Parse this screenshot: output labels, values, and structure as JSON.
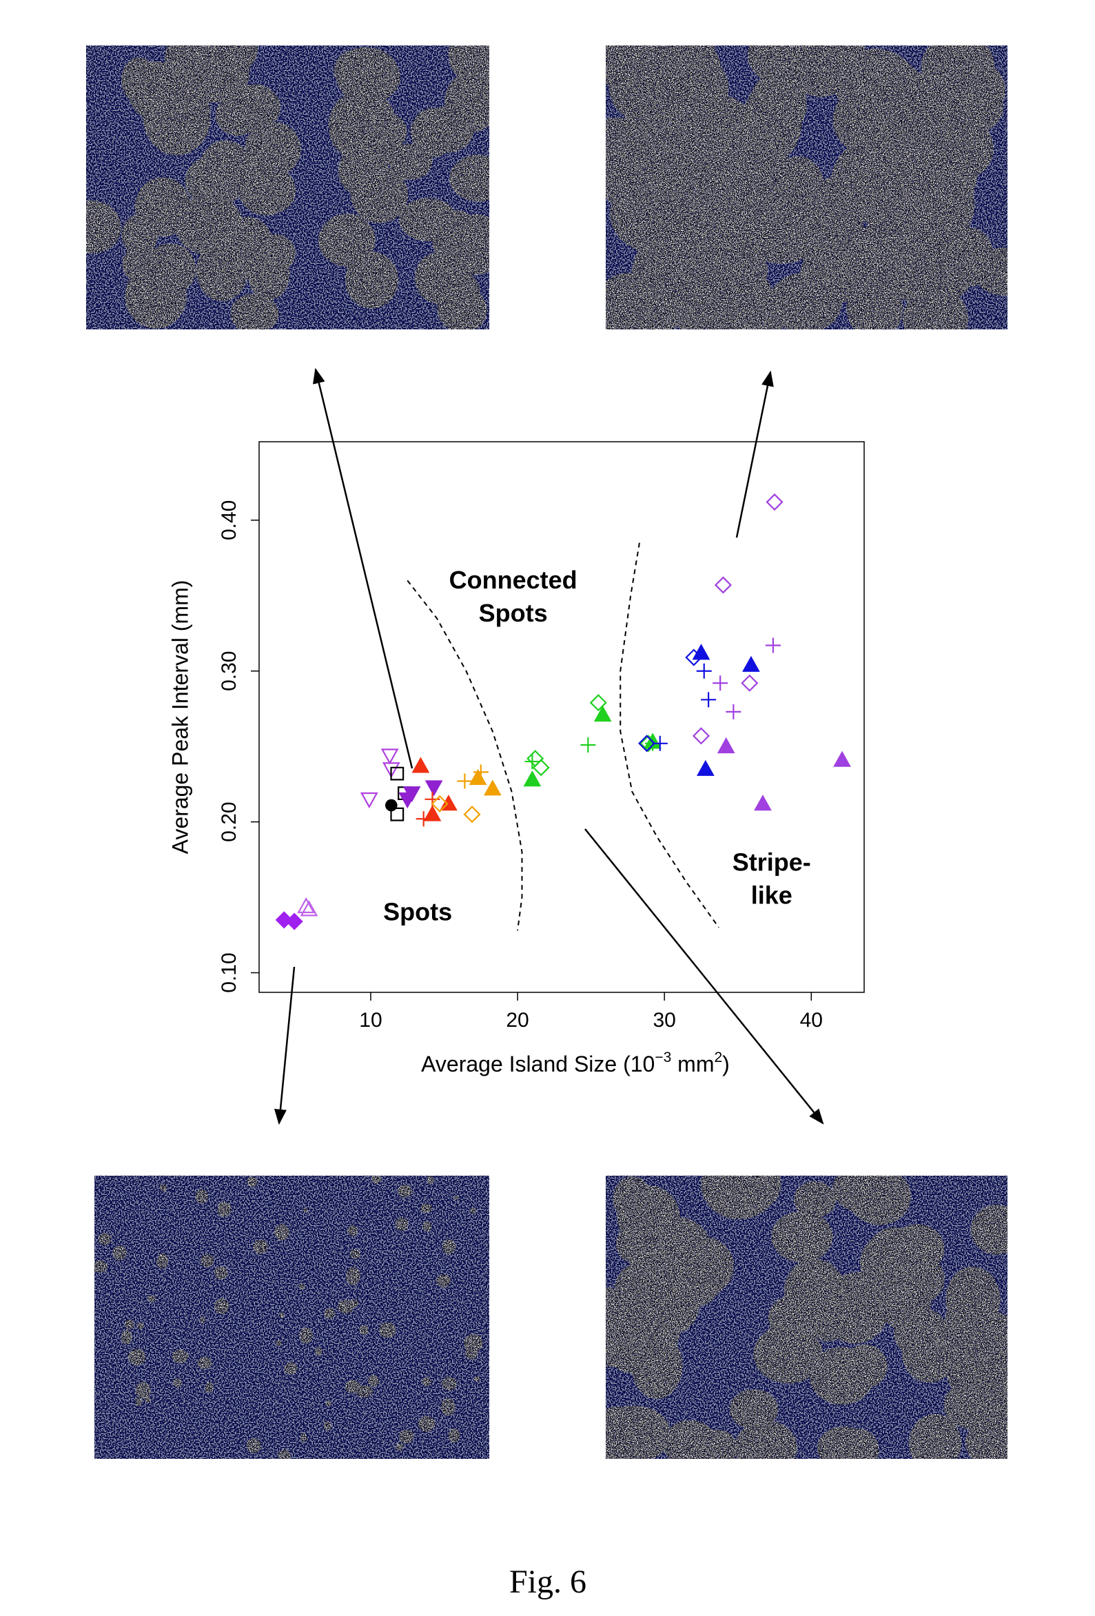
{
  "chart_data": {
    "type": "scatter",
    "xlabel": [
      "Average Island Size (10",
      "−3",
      " mm",
      "2",
      ")"
    ],
    "ylabel": "Average Peak Interval (mm)",
    "xlim": [
      2.4,
      43.6
    ],
    "ylim": [
      0.087,
      0.452
    ],
    "xticks": [
      10,
      20,
      30,
      40
    ],
    "yticks": [
      {
        "value": 0.1,
        "label": "0.10"
      },
      {
        "value": 0.2,
        "label": "0.20"
      },
      {
        "value": 0.3,
        "label": "0.30"
      },
      {
        "value": 0.4,
        "label": "0.40"
      }
    ],
    "annotations": [
      [
        "Connected",
        "Spots"
      ],
      [
        "Spots"
      ],
      [
        "Stripe-",
        "like"
      ]
    ],
    "series": [
      {
        "color": "#a020f0",
        "marker": "diamond-filled",
        "x": [
          4.1,
          4.8
        ],
        "values": [
          0.135,
          0.134
        ]
      },
      {
        "color": "#c060e8",
        "marker": "triangle-open",
        "x": [
          5.6,
          5.8
        ],
        "values": [
          0.144,
          0.142
        ]
      },
      {
        "color": "#b040e0",
        "marker": "down-triangle-open",
        "x": [
          11.4,
          9.9,
          11.3
        ],
        "values": [
          0.235,
          0.215,
          0.244
        ]
      },
      {
        "color": "#000000",
        "marker": "circle-filled",
        "x": [
          11.4
        ],
        "values": [
          0.211
        ]
      },
      {
        "color": "#000000",
        "marker": "square-open",
        "x": [
          11.8,
          11.8,
          12.3
        ],
        "values": [
          0.232,
          0.205,
          0.219
        ]
      },
      {
        "color": "#9020d0",
        "marker": "down-triangle-filled",
        "x": [
          12.8,
          14.3,
          12.5
        ],
        "values": [
          0.219,
          0.223,
          0.215
        ]
      },
      {
        "color": "#f03010",
        "marker": "triangle-filled",
        "x": [
          13.4,
          14.2,
          15.3
        ],
        "values": [
          0.237,
          0.205,
          0.212
        ]
      },
      {
        "color": "#f03010",
        "marker": "plus",
        "x": [
          13.6,
          14.2
        ],
        "values": [
          0.202,
          0.215
        ]
      },
      {
        "color": "#f0a000",
        "marker": "diamond-open",
        "x": [
          14.7,
          16.9
        ],
        "values": [
          0.212,
          0.205
        ]
      },
      {
        "color": "#f0a000",
        "marker": "triangle-filled",
        "x": [
          17.3,
          18.3
        ],
        "values": [
          0.229,
          0.222
        ]
      },
      {
        "color": "#f0a000",
        "marker": "plus",
        "x": [
          16.4,
          17.5
        ],
        "values": [
          0.227,
          0.233
        ]
      },
      {
        "color": "#20d020",
        "marker": "plus",
        "x": [
          21.0,
          24.8,
          29.2
        ],
        "values": [
          0.24,
          0.251,
          0.252
        ]
      },
      {
        "color": "#20d020",
        "marker": "diamond-open",
        "x": [
          21.2,
          25.5,
          28.9,
          21.6
        ],
        "values": [
          0.242,
          0.279,
          0.252,
          0.236
        ]
      },
      {
        "color": "#20d020",
        "marker": "triangle-filled",
        "x": [
          21.0,
          25.8,
          29.2
        ],
        "values": [
          0.228,
          0.271,
          0.253
        ]
      },
      {
        "color": "#1010e0",
        "marker": "plus",
        "x": [
          32.7,
          33.0,
          29.7
        ],
        "values": [
          0.3,
          0.281,
          0.252
        ]
      },
      {
        "color": "#1010e0",
        "marker": "triangle-filled",
        "x": [
          32.5,
          32.8,
          35.9
        ],
        "values": [
          0.312,
          0.235,
          0.304
        ]
      },
      {
        "color": "#1010e0",
        "marker": "diamond-open",
        "x": [
          32.0,
          28.8
        ],
        "values": [
          0.309,
          0.252
        ]
      },
      {
        "color": "#a040e0",
        "marker": "diamond-open",
        "x": [
          37.5,
          34.0,
          35.8,
          32.5
        ],
        "values": [
          0.412,
          0.357,
          0.292,
          0.257
        ]
      },
      {
        "color": "#a040e0",
        "marker": "plus",
        "x": [
          37.4,
          33.8,
          34.7
        ],
        "values": [
          0.317,
          0.292,
          0.273
        ]
      },
      {
        "color": "#a040e0",
        "marker": "triangle-filled",
        "x": [
          34.2,
          36.7,
          42.1
        ],
        "values": [
          0.25,
          0.212,
          0.241
        ]
      }
    ]
  },
  "caption": "Fig. 6"
}
